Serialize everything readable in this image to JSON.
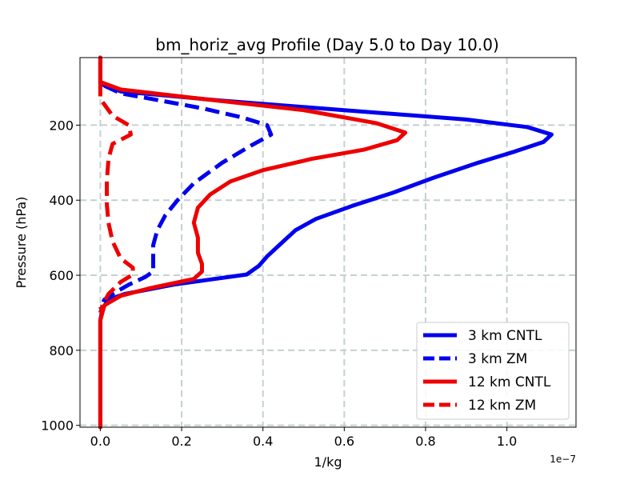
{
  "chart_data": {
    "type": "line",
    "title": "bm_horiz_avg Profile (Day 5.0 to Day 10.0)",
    "xlabel": "1/kg",
    "ylabel": "Pressure (hPa)",
    "x_scale_label": "1e−7",
    "xlim": [
      -0.05,
      1.17
    ],
    "ylim": [
      1005,
      20
    ],
    "y_inverted": true,
    "xticks": [
      0.0,
      0.2,
      0.4,
      0.6,
      0.8,
      1.0
    ],
    "xtick_labels": [
      "0.0",
      "0.2",
      "0.4",
      "0.6",
      "0.8",
      "1.0"
    ],
    "yticks": [
      200,
      400,
      600,
      800,
      1000
    ],
    "ytick_labels": [
      "200",
      "400",
      "600",
      "800",
      "1000"
    ],
    "grid": true,
    "legend_position": "lower-right",
    "series": [
      {
        "name": "3 km CNTL",
        "color": "#0000ee",
        "style": "solid",
        "points": [
          [
            0.0,
            20
          ],
          [
            0.0,
            90
          ],
          [
            0.05,
            110
          ],
          [
            0.3,
            135
          ],
          [
            0.6,
            160
          ],
          [
            0.9,
            185
          ],
          [
            1.05,
            205
          ],
          [
            1.11,
            225
          ],
          [
            1.09,
            245
          ],
          [
            1.02,
            270
          ],
          [
            0.93,
            300
          ],
          [
            0.82,
            340
          ],
          [
            0.72,
            380
          ],
          [
            0.62,
            415
          ],
          [
            0.53,
            450
          ],
          [
            0.48,
            480
          ],
          [
            0.44,
            520
          ],
          [
            0.41,
            550
          ],
          [
            0.39,
            575
          ],
          [
            0.36,
            598
          ],
          [
            0.18,
            625
          ],
          [
            0.06,
            650
          ],
          [
            0.02,
            665
          ],
          [
            0.005,
            690
          ],
          [
            0.0,
            720
          ],
          [
            0.0,
            800
          ],
          [
            0.0,
            1005
          ]
        ]
      },
      {
        "name": "3 km ZM",
        "color": "#0000ee",
        "style": "dashed",
        "points": [
          [
            0.01,
            95
          ],
          [
            0.05,
            115
          ],
          [
            0.15,
            135
          ],
          [
            0.25,
            155
          ],
          [
            0.35,
            180
          ],
          [
            0.41,
            200
          ],
          [
            0.42,
            225
          ],
          [
            0.37,
            255
          ],
          [
            0.3,
            300
          ],
          [
            0.23,
            355
          ],
          [
            0.19,
            400
          ],
          [
            0.16,
            440
          ],
          [
            0.14,
            480
          ],
          [
            0.13,
            520
          ],
          [
            0.13,
            560
          ],
          [
            0.13,
            590
          ],
          [
            0.11,
            605
          ],
          [
            0.07,
            625
          ],
          [
            0.03,
            650
          ],
          [
            0.01,
            665
          ],
          [
            0.0,
            690
          ]
        ]
      },
      {
        "name": "12 km CNTL",
        "color": "#ee0000",
        "style": "solid",
        "points": [
          [
            0.0,
            20
          ],
          [
            0.0,
            85
          ],
          [
            0.05,
            105
          ],
          [
            0.25,
            130
          ],
          [
            0.5,
            160
          ],
          [
            0.68,
            195
          ],
          [
            0.75,
            220
          ],
          [
            0.73,
            240
          ],
          [
            0.65,
            265
          ],
          [
            0.52,
            290
          ],
          [
            0.4,
            320
          ],
          [
            0.32,
            350
          ],
          [
            0.27,
            385
          ],
          [
            0.24,
            420
          ],
          [
            0.23,
            460
          ],
          [
            0.24,
            500
          ],
          [
            0.24,
            540
          ],
          [
            0.25,
            570
          ],
          [
            0.25,
            590
          ],
          [
            0.23,
            610
          ],
          [
            0.12,
            635
          ],
          [
            0.05,
            655
          ],
          [
            0.01,
            680
          ],
          [
            0.0,
            720
          ],
          [
            0.0,
            800
          ],
          [
            0.0,
            1005
          ]
        ]
      },
      {
        "name": "12 km ZM",
        "color": "#ee0000",
        "style": "dashed",
        "points": [
          [
            0.0,
            85
          ],
          [
            0.0,
            130
          ],
          [
            0.03,
            175
          ],
          [
            0.07,
            200
          ],
          [
            0.075,
            225
          ],
          [
            0.03,
            250
          ],
          [
            0.02,
            290
          ],
          [
            0.016,
            350
          ],
          [
            0.016,
            410
          ],
          [
            0.02,
            460
          ],
          [
            0.03,
            510
          ],
          [
            0.05,
            555
          ],
          [
            0.08,
            580
          ],
          [
            0.08,
            598
          ],
          [
            0.05,
            618
          ],
          [
            0.02,
            650
          ],
          [
            0.005,
            680
          ],
          [
            0.0,
            700
          ]
        ]
      }
    ]
  }
}
